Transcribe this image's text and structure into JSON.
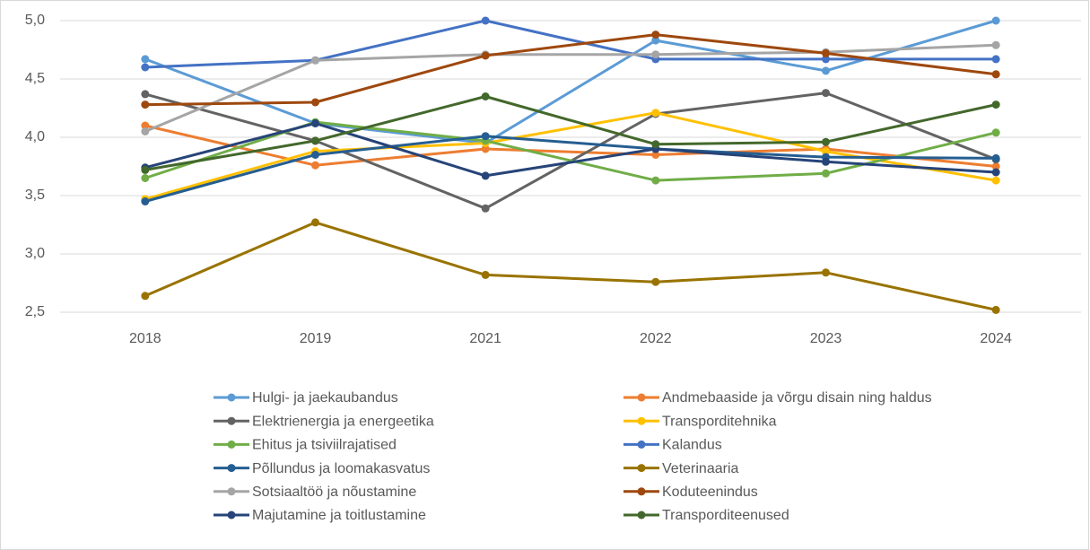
{
  "chart_data": {
    "type": "line",
    "categories": [
      "2018",
      "2019",
      "2021",
      "2022",
      "2023",
      "2024"
    ],
    "ylim": [
      2.5,
      5
    ],
    "yticks": [
      {
        "value": 2.5,
        "label": "2,5"
      },
      {
        "value": 3,
        "label": "3,0"
      },
      {
        "value": 3.5,
        "label": "3,5"
      },
      {
        "value": 4,
        "label": "4,0"
      },
      {
        "value": 4.5,
        "label": "4,5"
      },
      {
        "value": 5,
        "label": "5,0"
      }
    ],
    "grid": true,
    "legend": "bottom",
    "series": [
      {
        "name": "Hulgi- ja jaekaubandus",
        "color": "#5b9bd5",
        "values": [
          4.67,
          4.12,
          3.95,
          4.83,
          4.57,
          5.0
        ]
      },
      {
        "name": "Andmebaaside ja võrgu disain ning haldus",
        "color": "#ed7d31",
        "values": [
          4.1,
          3.76,
          3.9,
          3.85,
          3.9,
          3.75
        ]
      },
      {
        "name": "Elektrienergia ja energeetika",
        "color": "#636363",
        "values": [
          4.37,
          3.97,
          3.39,
          4.2,
          4.38,
          3.81
        ]
      },
      {
        "name": "Transporditehnika",
        "color": "#ffc000",
        "values": [
          3.47,
          3.88,
          3.95,
          4.21,
          3.88,
          3.63
        ]
      },
      {
        "name": "Ehitus ja tsiviilrajatised",
        "color": "#70ad47",
        "values": [
          3.65,
          4.13,
          3.97,
          3.63,
          3.69,
          4.04
        ]
      },
      {
        "name": "Kalandus",
        "color": "#4472c4",
        "values": [
          4.6,
          4.66,
          5.0,
          4.67,
          4.67,
          4.67
        ]
      },
      {
        "name": "Põllundus ja loomakasvatus",
        "color": "#255e91",
        "values": [
          3.45,
          3.85,
          4.01,
          3.9,
          3.83,
          3.82
        ]
      },
      {
        "name": "Veterinaaria",
        "color": "#997300",
        "values": [
          2.64,
          3.27,
          2.82,
          2.76,
          2.84,
          2.52
        ]
      },
      {
        "name": "Sotsiaaltöö ja nõustamine",
        "color": "#a5a5a5",
        "values": [
          4.05,
          4.66,
          4.71,
          4.71,
          4.73,
          4.79
        ]
      },
      {
        "name": "Koduteenindus",
        "color": "#9e480e",
        "values": [
          4.28,
          4.3,
          4.7,
          4.88,
          4.72,
          4.54
        ]
      },
      {
        "name": "Majutamine ja toitlustamine",
        "color": "#264478",
        "values": [
          3.74,
          4.12,
          3.67,
          3.9,
          3.79,
          3.7
        ]
      },
      {
        "name": "Transporditeenused",
        "color": "#43682b",
        "values": [
          3.72,
          3.97,
          4.35,
          3.94,
          3.96,
          4.28
        ]
      }
    ]
  }
}
